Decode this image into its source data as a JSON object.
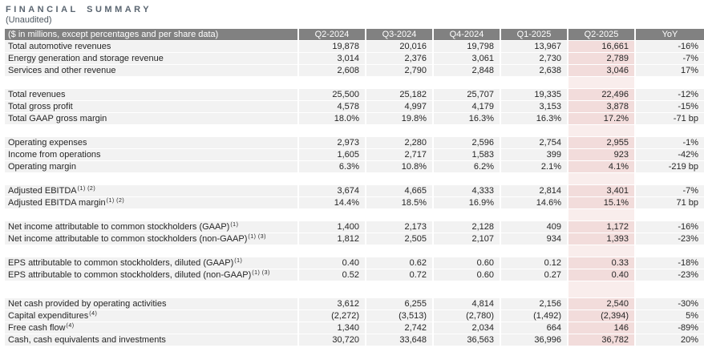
{
  "title": "FINANCIAL SUMMARY",
  "subtitle": "(Unaudited)",
  "colors": {
    "header_bg": "#818181",
    "header_text": "#ffffff",
    "row_bg": "#f2f2f2",
    "highlight_column_bg": "#f2dcdb",
    "highlight_spacer_bg": "#f9edec",
    "title_text": "#5a6570",
    "body_text": "#262626"
  },
  "table": {
    "header": {
      "label": "($ in millions, except percentages and per share data)",
      "columns": [
        "Q2-2024",
        "Q3-2024",
        "Q4-2024",
        "Q1-2025",
        "Q2-2025",
        "YoY"
      ],
      "highlighted_column": "Q2-2025"
    },
    "rows": [
      {
        "type": "data",
        "label": "Total automotive revenues",
        "sup": "",
        "values": [
          "19,878",
          "20,016",
          "19,798",
          "13,967",
          "16,661"
        ],
        "yoy": "-16%"
      },
      {
        "type": "data",
        "label": "Energy generation and storage revenue",
        "sup": "",
        "values": [
          "3,014",
          "2,376",
          "3,061",
          "2,730",
          "2,789"
        ],
        "yoy": "-7%"
      },
      {
        "type": "data",
        "label": "Services and other revenue",
        "sup": "",
        "values": [
          "2,608",
          "2,790",
          "2,848",
          "2,638",
          "3,046"
        ],
        "yoy": "17%"
      },
      {
        "type": "spacer"
      },
      {
        "type": "data",
        "label": "Total revenues",
        "sup": "",
        "values": [
          "25,500",
          "25,182",
          "25,707",
          "19,335",
          "22,496"
        ],
        "yoy": "-12%"
      },
      {
        "type": "data",
        "label": "Total gross profit",
        "sup": "",
        "values": [
          "4,578",
          "4,997",
          "4,179",
          "3,153",
          "3,878"
        ],
        "yoy": "-15%"
      },
      {
        "type": "data",
        "label": "Total GAAP gross margin",
        "sup": "",
        "values": [
          "18.0%",
          "19.8%",
          "16.3%",
          "16.3%",
          "17.2%"
        ],
        "yoy": "-71 bp"
      },
      {
        "type": "spacer"
      },
      {
        "type": "data",
        "label": "Operating expenses",
        "sup": "",
        "values": [
          "2,973",
          "2,280",
          "2,596",
          "2,754",
          "2,955"
        ],
        "yoy": "-1%"
      },
      {
        "type": "data",
        "label": "Income from operations",
        "sup": "",
        "values": [
          "1,605",
          "2,717",
          "1,583",
          "399",
          "923"
        ],
        "yoy": "-42%"
      },
      {
        "type": "data",
        "label": "Operating margin",
        "sup": "",
        "values": [
          "6.3%",
          "10.8%",
          "6.2%",
          "2.1%",
          "4.1%"
        ],
        "yoy": "-219 bp"
      },
      {
        "type": "spacer"
      },
      {
        "type": "data",
        "label": "Adjusted EBITDA",
        "sup": "(1) (2)",
        "values": [
          "3,674",
          "4,665",
          "4,333",
          "2,814",
          "3,401"
        ],
        "yoy": "-7%"
      },
      {
        "type": "data",
        "label": "Adjusted EBITDA margin",
        "sup": "(1) (2)",
        "values": [
          "14.4%",
          "18.5%",
          "16.9%",
          "14.6%",
          "15.1%"
        ],
        "yoy": "71 bp"
      },
      {
        "type": "spacer"
      },
      {
        "type": "data",
        "label": "Net income attributable to common stockholders (GAAP)",
        "sup": "(1)",
        "values": [
          "1,400",
          "2,173",
          "2,128",
          "409",
          "1,172"
        ],
        "yoy": "-16%"
      },
      {
        "type": "data",
        "label": "Net income attributable to common stockholders (non-GAAP)",
        "sup": "(1) (3)",
        "values": [
          "1,812",
          "2,505",
          "2,107",
          "934",
          "1,393"
        ],
        "yoy": "-23%"
      },
      {
        "type": "spacer"
      },
      {
        "type": "data",
        "label": "EPS attributable to common stockholders, diluted (GAAP)",
        "sup": "(1)",
        "values": [
          "0.40",
          "0.62",
          "0.60",
          "0.12",
          "0.33"
        ],
        "yoy": "-18%"
      },
      {
        "type": "data",
        "label": "EPS attributable to common stockholders, diluted (non-GAAP)",
        "sup": "(1) (3)",
        "values": [
          "0.52",
          "0.72",
          "0.60",
          "0.27",
          "0.40"
        ],
        "yoy": "-23%"
      },
      {
        "type": "spacer",
        "tall": true
      },
      {
        "type": "data",
        "label": "Net cash provided by operating activities",
        "sup": "",
        "values": [
          "3,612",
          "6,255",
          "4,814",
          "2,156",
          "2,540"
        ],
        "yoy": "-30%"
      },
      {
        "type": "data",
        "label": "Capital expenditures",
        "sup": "(4)",
        "values": [
          "(2,272)",
          "(3,513)",
          "(2,780)",
          "(1,492)",
          "(2,394)"
        ],
        "yoy": "5%"
      },
      {
        "type": "data",
        "label": "Free cash flow",
        "sup": "(4)",
        "values": [
          "1,340",
          "2,742",
          "2,034",
          "664",
          "146"
        ],
        "yoy": "-89%"
      },
      {
        "type": "data",
        "label": "Cash, cash equivalents and investments",
        "sup": "",
        "values": [
          "30,720",
          "33,648",
          "36,563",
          "36,996",
          "36,782"
        ],
        "yoy": "20%"
      }
    ]
  }
}
